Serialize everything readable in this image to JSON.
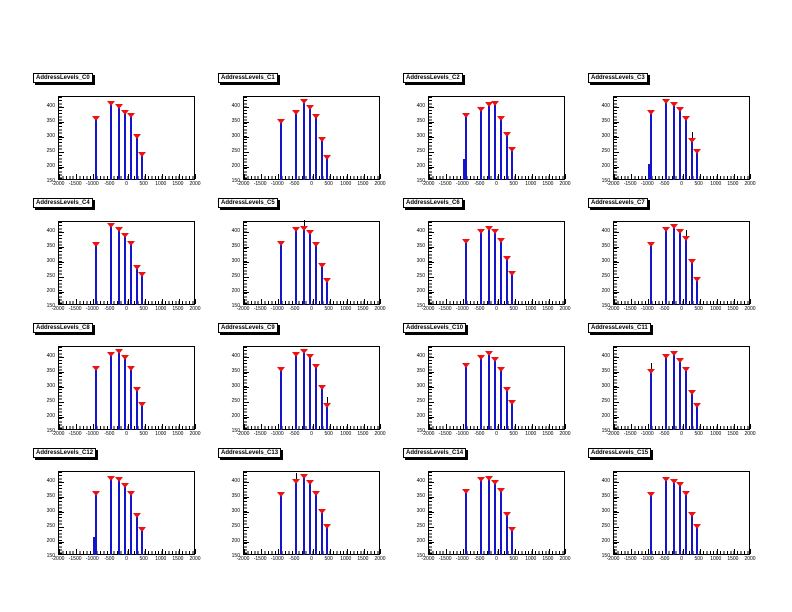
{
  "window": {
    "background": "#ffffff"
  },
  "colors": {
    "spike_blue": "#1414cc",
    "marker_red": "#ee1111",
    "axis_black": "#000000",
    "pad_background": "#ffffff"
  },
  "axes": {
    "x_labels": [
      "-2000",
      "-1500",
      "-1000",
      "-500",
      "0",
      "500",
      "1000",
      "1500",
      "2000"
    ],
    "y_labels": [
      "400",
      "350",
      "300",
      "250",
      "200",
      "150"
    ],
    "xlim": [
      -2000,
      2000
    ],
    "ylim": [
      150,
      430
    ],
    "grid": false,
    "marker_style": "filled-triangle-down-red",
    "line_style": "blue-vertical-spikes"
  },
  "chart_data": [
    {
      "type": "bar",
      "title": "AddressLevels_C0",
      "x": [
        -900,
        -440,
        -230,
        -30,
        140,
        310,
        460
      ],
      "values": [
        355,
        405,
        395,
        375,
        365,
        295,
        235
      ],
      "err_indices": [],
      "minor_peaks": []
    },
    {
      "type": "bar",
      "title": "AddressLevels_C1",
      "x": [
        -900,
        -440,
        -230,
        -30,
        140,
        310,
        460
      ],
      "values": [
        345,
        375,
        410,
        390,
        360,
        285,
        225
      ],
      "err_indices": [],
      "minor_peaks": []
    },
    {
      "type": "bar",
      "title": "AddressLevels_C2",
      "x": [
        -900,
        -440,
        -230,
        -30,
        140,
        310,
        460
      ],
      "values": [
        365,
        385,
        400,
        405,
        355,
        300,
        250
      ],
      "err_indices": [],
      "minor_peaks": [
        {
          "x": -950,
          "v": 220
        }
      ]
    },
    {
      "type": "bar",
      "title": "AddressLevels_C3",
      "x": [
        -900,
        -440,
        -230,
        -30,
        140,
        310,
        460
      ],
      "values": [
        375,
        410,
        400,
        385,
        355,
        280,
        245
      ],
      "err_indices": [
        5
      ],
      "minor_peaks": [
        {
          "x": -950,
          "v": 205
        }
      ]
    },
    {
      "type": "bar",
      "title": "AddressLevels_C4",
      "x": [
        -900,
        -440,
        -230,
        -30,
        140,
        310,
        460
      ],
      "values": [
        350,
        415,
        400,
        380,
        355,
        275,
        250
      ],
      "err_indices": [],
      "minor_peaks": []
    },
    {
      "type": "bar",
      "title": "AddressLevels_C5",
      "x": [
        -900,
        -440,
        -230,
        -30,
        140,
        310,
        460
      ],
      "values": [
        355,
        400,
        405,
        390,
        350,
        280,
        230
      ],
      "err_indices": [
        2
      ],
      "minor_peaks": []
    },
    {
      "type": "bar",
      "title": "AddressLevels_C6",
      "x": [
        -900,
        -440,
        -230,
        -30,
        140,
        310,
        460
      ],
      "values": [
        360,
        395,
        405,
        395,
        365,
        305,
        255
      ],
      "err_indices": [],
      "minor_peaks": []
    },
    {
      "type": "bar",
      "title": "AddressLevels_C7",
      "x": [
        -900,
        -440,
        -230,
        -30,
        140,
        310,
        460
      ],
      "values": [
        350,
        400,
        410,
        395,
        370,
        295,
        235
      ],
      "err_indices": [
        4
      ],
      "minor_peaks": []
    },
    {
      "type": "bar",
      "title": "AddressLevels_C8",
      "x": [
        -900,
        -440,
        -230,
        -30,
        140,
        310,
        460
      ],
      "values": [
        355,
        400,
        410,
        390,
        355,
        285,
        235
      ],
      "err_indices": [],
      "minor_peaks": []
    },
    {
      "type": "bar",
      "title": "AddressLevels_C9",
      "x": [
        -900,
        -440,
        -230,
        -30,
        140,
        310,
        460
      ],
      "values": [
        350,
        400,
        410,
        395,
        360,
        290,
        230
      ],
      "err_indices": [
        6
      ],
      "minor_peaks": []
    },
    {
      "type": "bar",
      "title": "AddressLevels_C10",
      "x": [
        -900,
        -440,
        -230,
        -30,
        140,
        310,
        460
      ],
      "values": [
        365,
        390,
        405,
        385,
        350,
        285,
        240
      ],
      "err_indices": [],
      "minor_peaks": []
    },
    {
      "type": "bar",
      "title": "AddressLevels_C11",
      "x": [
        -900,
        -440,
        -230,
        -30,
        140,
        310,
        460
      ],
      "values": [
        345,
        395,
        405,
        380,
        350,
        275,
        230
      ],
      "err_indices": [
        0
      ],
      "minor_peaks": []
    },
    {
      "type": "bar",
      "title": "AddressLevels_C12",
      "x": [
        -900,
        -440,
        -230,
        -30,
        140,
        310,
        460
      ],
      "values": [
        355,
        405,
        400,
        380,
        355,
        280,
        235
      ],
      "err_indices": [],
      "minor_peaks": [
        {
          "x": -950,
          "v": 210
        }
      ]
    },
    {
      "type": "bar",
      "title": "AddressLevels_C13",
      "x": [
        -900,
        -440,
        -230,
        -30,
        140,
        310,
        460
      ],
      "values": [
        350,
        395,
        410,
        390,
        355,
        295,
        245
      ],
      "err_indices": [
        1
      ],
      "minor_peaks": []
    },
    {
      "type": "bar",
      "title": "AddressLevels_C14",
      "x": [
        -900,
        -440,
        -230,
        -30,
        140,
        310,
        460
      ],
      "values": [
        360,
        400,
        405,
        390,
        365,
        285,
        235
      ],
      "err_indices": [],
      "minor_peaks": []
    },
    {
      "type": "bar",
      "title": "AddressLevels_C15",
      "x": [
        -900,
        -440,
        -230,
        -30,
        140,
        310,
        460
      ],
      "values": [
        350,
        400,
        395,
        385,
        355,
        285,
        245
      ],
      "err_indices": [],
      "minor_peaks": []
    }
  ]
}
